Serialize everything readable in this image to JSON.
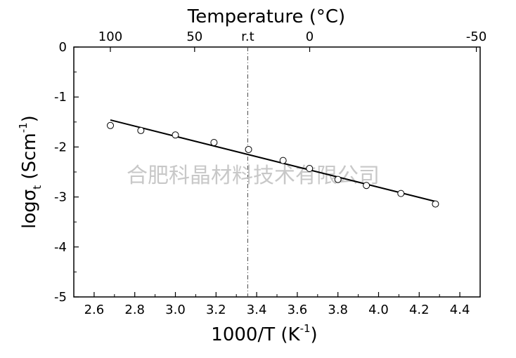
{
  "chart_data": {
    "type": "scatter",
    "title": "",
    "xlabel": "1000/T (K",
    "xlabel_superscript": "-1",
    "xlabel_close": ")",
    "ylabel": "logσ",
    "ylabel_subscript": "t",
    "ylabel_unit": " (Scm",
    "ylabel_unit_superscript": "-1",
    "ylabel_close": ")",
    "top_axis_label": "Temperature (°C)",
    "xlim": [
      2.5,
      4.5
    ],
    "ylim": [
      -5,
      0
    ],
    "x_ticks": [
      "2.6",
      "2.8",
      "3.0",
      "3.2",
      "3.4",
      "3.6",
      "3.8",
      "4.0",
      "4.2",
      "4.4"
    ],
    "y_ticks": [
      "0",
      "-1",
      "-2",
      "-3",
      "-4",
      "-5"
    ],
    "top_ticks": [
      {
        "label": "100",
        "celsius": 100
      },
      {
        "label": "50",
        "celsius": 50
      },
      {
        "label": "0",
        "celsius": 0
      },
      {
        "label": "-50",
        "celsius": -50
      }
    ],
    "reference_line": {
      "label": "r.t",
      "x": 3.356
    },
    "series": [
      {
        "marker": "open-circle",
        "x": [
          2.68,
          2.83,
          3.0,
          3.19,
          3.36,
          3.53,
          3.66,
          3.8,
          3.94,
          4.11,
          4.28
        ],
        "y": [
          -1.57,
          -1.67,
          -1.76,
          -1.91,
          -2.05,
          -2.27,
          -2.43,
          -2.65,
          -2.77,
          -2.93,
          -3.14
        ]
      }
    ],
    "fit_line": {
      "x": [
        2.68,
        4.28
      ],
      "y": [
        -1.46,
        -3.09
      ]
    },
    "grid": false,
    "legend": "none",
    "colors": {
      "axis": "#000000",
      "points": "#000000",
      "fit": "#000000",
      "watermark": "#c8c8c8"
    }
  },
  "watermark": "合肥科晶材料技术有限公司"
}
